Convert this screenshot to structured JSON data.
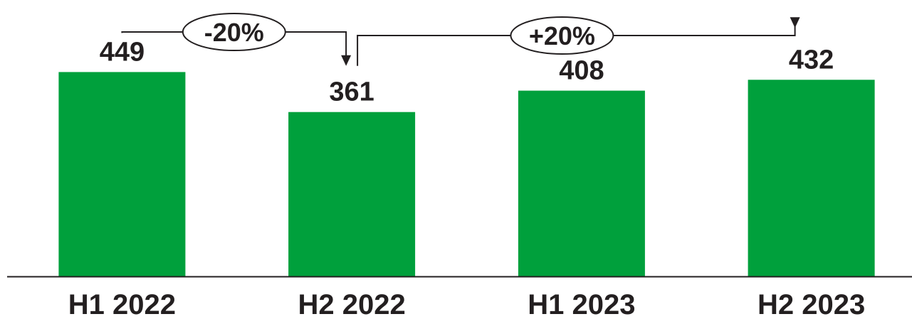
{
  "chart_data": {
    "type": "bar",
    "categories": [
      "H1 2022",
      "H2 2022",
      "H1 2023",
      "H2 2023"
    ],
    "values": [
      449,
      361,
      408,
      432
    ],
    "data_labels": [
      "449",
      "361",
      "408",
      "432"
    ],
    "ylim": [
      0,
      640
    ],
    "bar_color": "#00a03c",
    "text_color": "#231f20",
    "grid": false,
    "legend": "none",
    "title": "",
    "xlabel": "",
    "ylabel": "",
    "annotations": [
      {
        "from": "H1 2022",
        "to": "H2 2022",
        "label": "-20%"
      },
      {
        "from": "H2 2022",
        "to": "H2 2023",
        "label": "+20%"
      }
    ]
  }
}
